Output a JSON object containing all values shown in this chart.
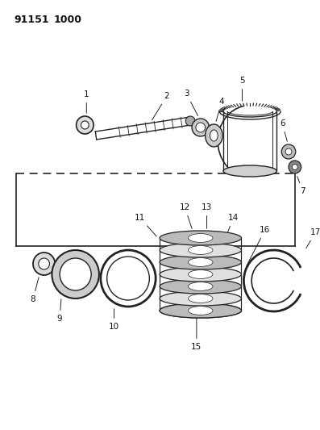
{
  "background_color": "#ffffff",
  "line_color": "#222222",
  "fig_width": 3.97,
  "fig_height": 5.33,
  "dpi": 100
}
